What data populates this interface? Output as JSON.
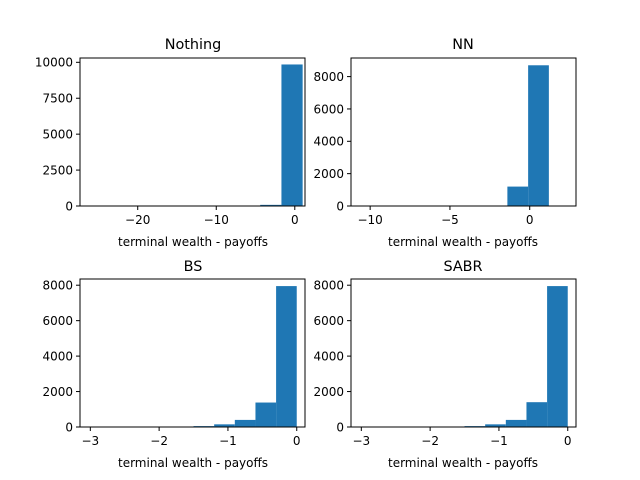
{
  "colors": {
    "bar": "#1f77b4",
    "frame": "#000000",
    "background": "#ffffff"
  },
  "chart_data": [
    {
      "type": "bar",
      "title": "Nothing",
      "xlabel": "terminal wealth - payoffs",
      "ylabel": "",
      "xlim": [
        -27.35,
        1.3
      ],
      "ylim": [
        0,
        10300
      ],
      "xticks": [
        -20,
        -10,
        0
      ],
      "xtick_labels": [
        "−20",
        "−10",
        "0"
      ],
      "yticks": [
        0,
        2500,
        5000,
        7500,
        10000
      ],
      "ytick_labels": [
        "0",
        "2500",
        "5000",
        "7500",
        "10000"
      ],
      "bins": [
        {
          "x0": -26.0,
          "x1": -23.3,
          "value": 1
        },
        {
          "x0": -23.3,
          "x1": -20.6,
          "value": 0
        },
        {
          "x0": -20.6,
          "x1": -17.9,
          "value": 1
        },
        {
          "x0": -17.9,
          "x1": -15.2,
          "value": 2
        },
        {
          "x0": -15.2,
          "x1": -12.5,
          "value": 3
        },
        {
          "x0": -12.5,
          "x1": -9.8,
          "value": 5
        },
        {
          "x0": -9.8,
          "x1": -7.1,
          "value": 10
        },
        {
          "x0": -7.1,
          "x1": -4.4,
          "value": 20
        },
        {
          "x0": -4.4,
          "x1": -1.7,
          "value": 80
        },
        {
          "x0": -1.7,
          "x1": 1.0,
          "value": 9850
        }
      ]
    },
    {
      "type": "bar",
      "title": "NN",
      "xlabel": "terminal wealth - payoffs",
      "ylabel": "",
      "xlim": [
        -11.2,
        2.9
      ],
      "ylim": [
        0,
        9150
      ],
      "xticks": [
        -10,
        -5,
        0
      ],
      "xtick_labels": [
        "−10",
        "−5",
        "0"
      ],
      "yticks": [
        0,
        2000,
        4000,
        6000,
        8000
      ],
      "ytick_labels": [
        "0",
        "2000",
        "4000",
        "6000",
        "8000"
      ],
      "bins": [
        {
          "x0": -10.5,
          "x1": -9.2,
          "value": 1
        },
        {
          "x0": -9.2,
          "x1": -7.9,
          "value": 0
        },
        {
          "x0": -7.9,
          "x1": -6.6,
          "value": 0
        },
        {
          "x0": -6.6,
          "x1": -5.3,
          "value": 1
        },
        {
          "x0": -5.3,
          "x1": -4.0,
          "value": 1
        },
        {
          "x0": -4.0,
          "x1": -2.7,
          "value": 3
        },
        {
          "x0": -2.7,
          "x1": -1.4,
          "value": 10
        },
        {
          "x0": -1.4,
          "x1": -0.1,
          "value": 1200
        },
        {
          "x0": -0.1,
          "x1": 1.2,
          "value": 8700
        },
        {
          "x0": 1.2,
          "x1": 2.5,
          "value": 0
        }
      ]
    },
    {
      "type": "bar",
      "title": "BS",
      "xlabel": "terminal wealth - payoffs",
      "ylabel": "",
      "xlim": [
        -3.15,
        0.12
      ],
      "ylim": [
        0,
        8350
      ],
      "xticks": [
        -3,
        -2,
        -1,
        0
      ],
      "xtick_labels": [
        "−3",
        "−2",
        "−1",
        "0"
      ],
      "yticks": [
        0,
        2000,
        4000,
        6000,
        8000
      ],
      "ytick_labels": [
        "0",
        "2000",
        "4000",
        "6000",
        "8000"
      ],
      "bins": [
        {
          "x0": -3.0,
          "x1": -2.7,
          "value": 2
        },
        {
          "x0": -2.7,
          "x1": -2.4,
          "value": 3
        },
        {
          "x0": -2.4,
          "x1": -2.1,
          "value": 5
        },
        {
          "x0": -2.1,
          "x1": -1.8,
          "value": 10
        },
        {
          "x0": -1.8,
          "x1": -1.5,
          "value": 20
        },
        {
          "x0": -1.5,
          "x1": -1.2,
          "value": 50
        },
        {
          "x0": -1.2,
          "x1": -0.9,
          "value": 150
        },
        {
          "x0": -0.9,
          "x1": -0.6,
          "value": 400
        },
        {
          "x0": -0.6,
          "x1": -0.3,
          "value": 1380
        },
        {
          "x0": -0.3,
          "x1": 0.0,
          "value": 7950
        }
      ]
    },
    {
      "type": "bar",
      "title": "SABR",
      "xlabel": "terminal wealth - payoffs",
      "ylabel": "",
      "xlim": [
        -3.15,
        0.12
      ],
      "ylim": [
        0,
        8350
      ],
      "xticks": [
        -3,
        -2,
        -1,
        0
      ],
      "xtick_labels": [
        "−3",
        "−2",
        "−1",
        "0"
      ],
      "yticks": [
        0,
        2000,
        4000,
        6000,
        8000
      ],
      "ytick_labels": [
        "0",
        "2000",
        "4000",
        "6000",
        "8000"
      ],
      "bins": [
        {
          "x0": -3.0,
          "x1": -2.7,
          "value": 2
        },
        {
          "x0": -2.7,
          "x1": -2.4,
          "value": 3
        },
        {
          "x0": -2.4,
          "x1": -2.1,
          "value": 5
        },
        {
          "x0": -2.1,
          "x1": -1.8,
          "value": 10
        },
        {
          "x0": -1.8,
          "x1": -1.5,
          "value": 20
        },
        {
          "x0": -1.5,
          "x1": -1.2,
          "value": 50
        },
        {
          "x0": -1.2,
          "x1": -0.9,
          "value": 150
        },
        {
          "x0": -0.9,
          "x1": -0.6,
          "value": 400
        },
        {
          "x0": -0.6,
          "x1": -0.3,
          "value": 1400
        },
        {
          "x0": -0.3,
          "x1": 0.0,
          "value": 7950
        }
      ]
    }
  ]
}
